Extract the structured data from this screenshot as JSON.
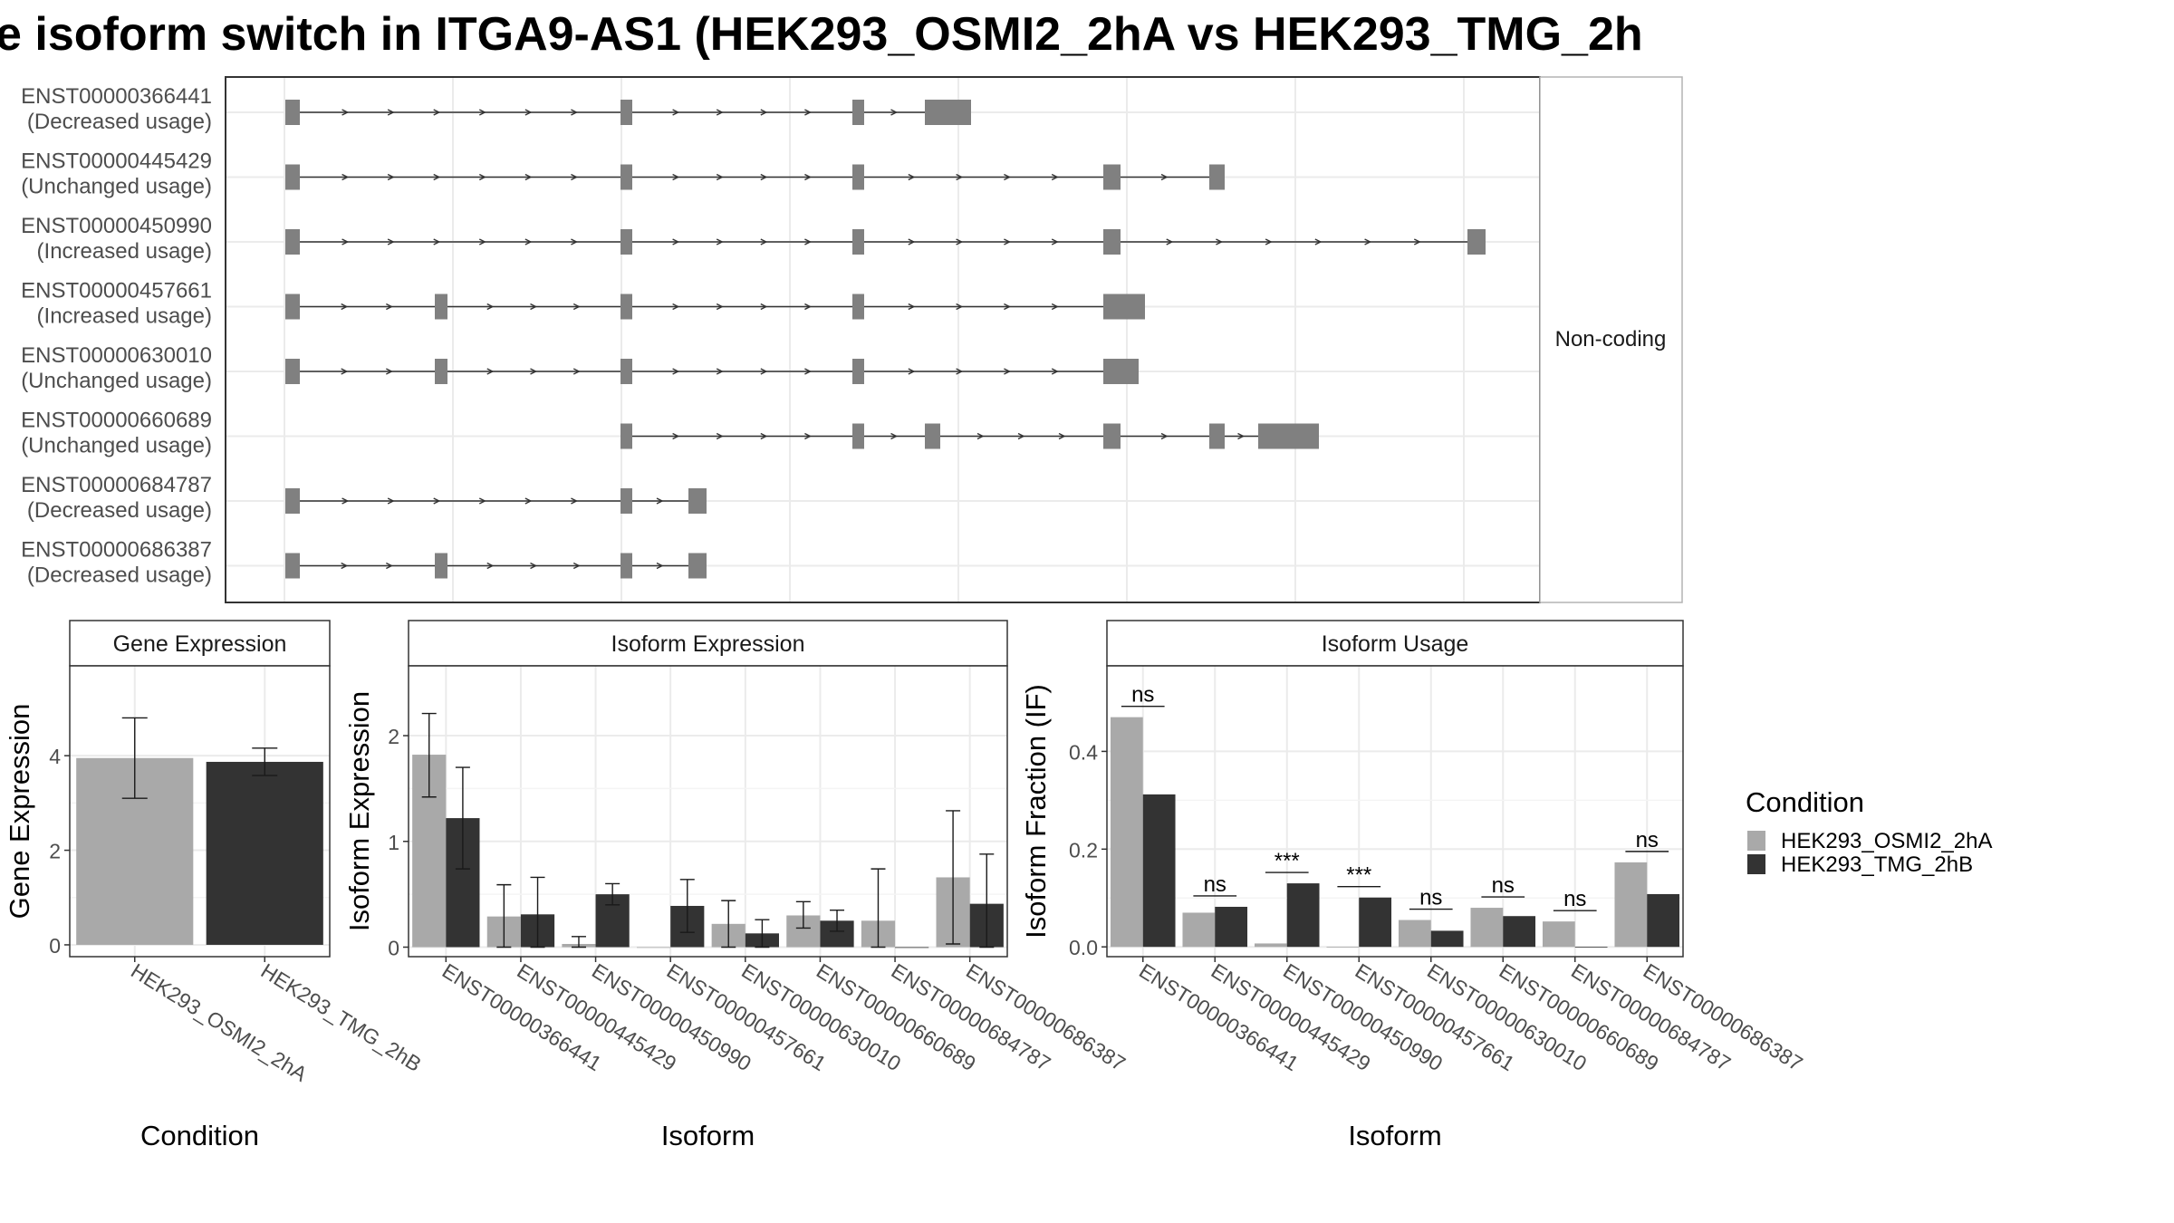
{
  "title": "e isoform switch in ITGA9-AS1 (HEK293_OSMI2_2hA vs HEK293_TMG_2h",
  "colors": {
    "condition_a": "#a9a9a9",
    "condition_b": "#333333",
    "exon": "#808080",
    "intron": "#333333",
    "grid": "#ebebeb",
    "strip": "#ffffff"
  },
  "structure_panel": {
    "strip_label": "Non-coding",
    "isoforms": [
      {
        "id": "ENST00000366441",
        "status": "(Decreased usage)"
      },
      {
        "id": "ENST00000445429",
        "status": "(Unchanged usage)"
      },
      {
        "id": "ENST00000450990",
        "status": "(Increased usage)"
      },
      {
        "id": "ENST00000457661",
        "status": "(Increased usage)"
      },
      {
        "id": "ENST00000630010",
        "status": "(Unchanged usage)"
      },
      {
        "id": "ENST00000660689",
        "status": "(Unchanged usage)"
      },
      {
        "id": "ENST00000684787",
        "status": "(Decreased usage)"
      },
      {
        "id": "ENST00000686387",
        "status": "(Decreased usage)"
      }
    ]
  },
  "chart_data": [
    {
      "type": "bar",
      "title": "Gene Expression",
      "xlabel": "Condition",
      "ylabel": "Gene Expression",
      "categories": [
        "HEK293_OSMI2_2hA",
        "HEK293_TMG_2hB"
      ],
      "values": [
        3.95,
        3.87
      ],
      "error_low": [
        3.1,
        3.58
      ],
      "error_high": [
        4.8,
        4.16
      ],
      "ylim": [
        -0.25,
        5.9
      ],
      "yticks": [
        0,
        2,
        4
      ]
    },
    {
      "type": "bar",
      "title": "Isoform Expression",
      "xlabel": "Isoform",
      "ylabel": "Isoform Expression",
      "categories": [
        "ENST00000366441",
        "ENST00000445429",
        "ENST00000450990",
        "ENST00000457661",
        "ENST00000630010",
        "ENST00000660689",
        "ENST00000684787",
        "ENST00000686387"
      ],
      "series": [
        {
          "name": "HEK293_OSMI2_2hA",
          "values": [
            1.82,
            0.29,
            0.03,
            0.0,
            0.22,
            0.3,
            0.25,
            0.66
          ],
          "error_low": [
            1.42,
            0.0,
            0.0,
            0.0,
            0.0,
            0.18,
            0.0,
            0.03
          ],
          "error_high": [
            2.21,
            0.59,
            0.1,
            0.0,
            0.44,
            0.43,
            0.74,
            1.29
          ]
        },
        {
          "name": "HEK293_TMG_2hB",
          "values": [
            1.22,
            0.31,
            0.5,
            0.39,
            0.13,
            0.25,
            0.0,
            0.41
          ],
          "error_low": [
            0.74,
            0.0,
            0.4,
            0.14,
            0.0,
            0.15,
            0.0,
            0.0
          ],
          "error_high": [
            1.7,
            0.66,
            0.6,
            0.64,
            0.26,
            0.35,
            0.0,
            0.88
          ]
        }
      ],
      "ylim": [
        -0.09,
        2.66
      ],
      "yticks": [
        0,
        1,
        2
      ]
    },
    {
      "type": "bar",
      "title": "Isoform Usage",
      "xlabel": "Isoform",
      "ylabel": "Isoform Fraction (IF)",
      "categories": [
        "ENST00000366441",
        "ENST00000445429",
        "ENST00000450990",
        "ENST00000457661",
        "ENST00000630010",
        "ENST00000660689",
        "ENST00000684787",
        "ENST00000686387"
      ],
      "series": [
        {
          "name": "HEK293_OSMI2_2hA",
          "values": [
            0.47,
            0.07,
            0.007,
            0.0,
            0.055,
            0.08,
            0.052,
            0.173
          ]
        },
        {
          "name": "HEK293_TMG_2hB",
          "values": [
            0.312,
            0.082,
            0.13,
            0.101,
            0.033,
            0.063,
            0.0,
            0.108
          ]
        }
      ],
      "significance": [
        "ns",
        "ns",
        "***",
        "***",
        "ns",
        "ns",
        "ns",
        "ns"
      ],
      "ylim": [
        -0.02,
        0.575
      ],
      "yticks": [
        "0.0",
        "0.2",
        "0.4"
      ]
    }
  ],
  "legend": {
    "title": "Condition",
    "items": [
      "HEK293_OSMI2_2hA",
      "HEK293_TMG_2hB"
    ]
  }
}
